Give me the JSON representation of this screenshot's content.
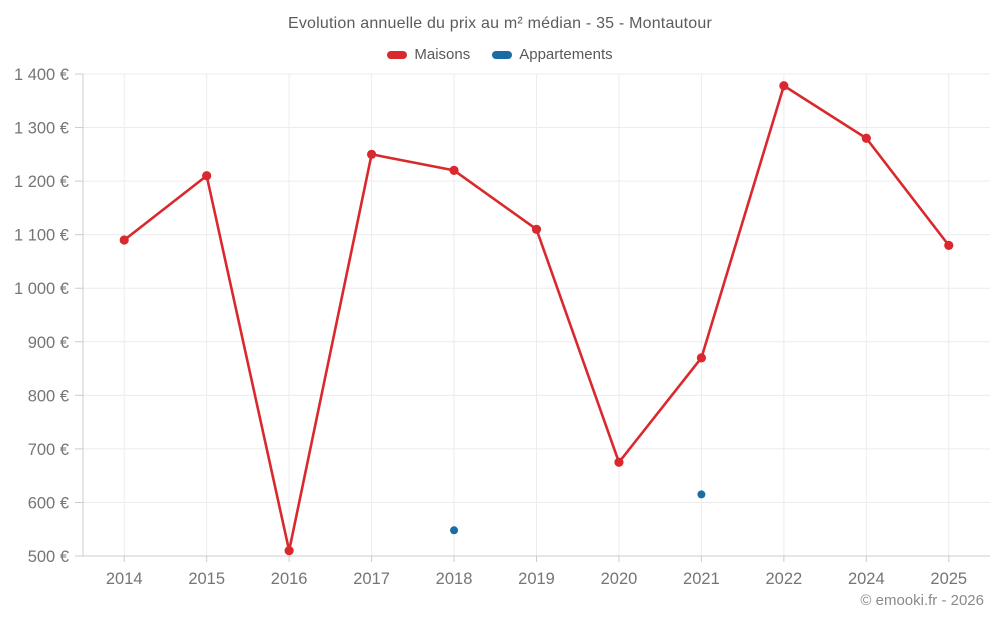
{
  "chart_data": {
    "type": "line",
    "title": "Evolution annuelle du prix au m² médian - 35 - Montautour",
    "categories": [
      "2014",
      "2015",
      "2016",
      "2017",
      "2018",
      "2019",
      "2020",
      "2021",
      "2022",
      "2024",
      "2025"
    ],
    "series": [
      {
        "name": "Maisons",
        "color": "#d9282e",
        "style": "line+points",
        "values": [
          1090,
          1210,
          510,
          1250,
          1220,
          1110,
          675,
          870,
          1378,
          1280,
          1080
        ]
      },
      {
        "name": "Appartements",
        "color": "#1b6ca3",
        "style": "points",
        "values": [
          null,
          null,
          null,
          null,
          548,
          null,
          null,
          615,
          null,
          null,
          null
        ]
      }
    ],
    "ylim": [
      500,
      1400
    ],
    "ytick_step": 100,
    "ytick_suffix": "€",
    "ytick_labels": [
      "500 €",
      "600 €",
      "700 €",
      "800 €",
      "900 €",
      "1 000 €",
      "1 100 €",
      "1 200 €",
      "1 300 €",
      "1 400 €"
    ],
    "grid": "both",
    "legend_position": "top",
    "axis_label_color": "#757575",
    "grid_color": "#ececec",
    "axis_color": "#cccccc"
  },
  "footer": {
    "copyright": "© emooki.fr - 2026"
  }
}
